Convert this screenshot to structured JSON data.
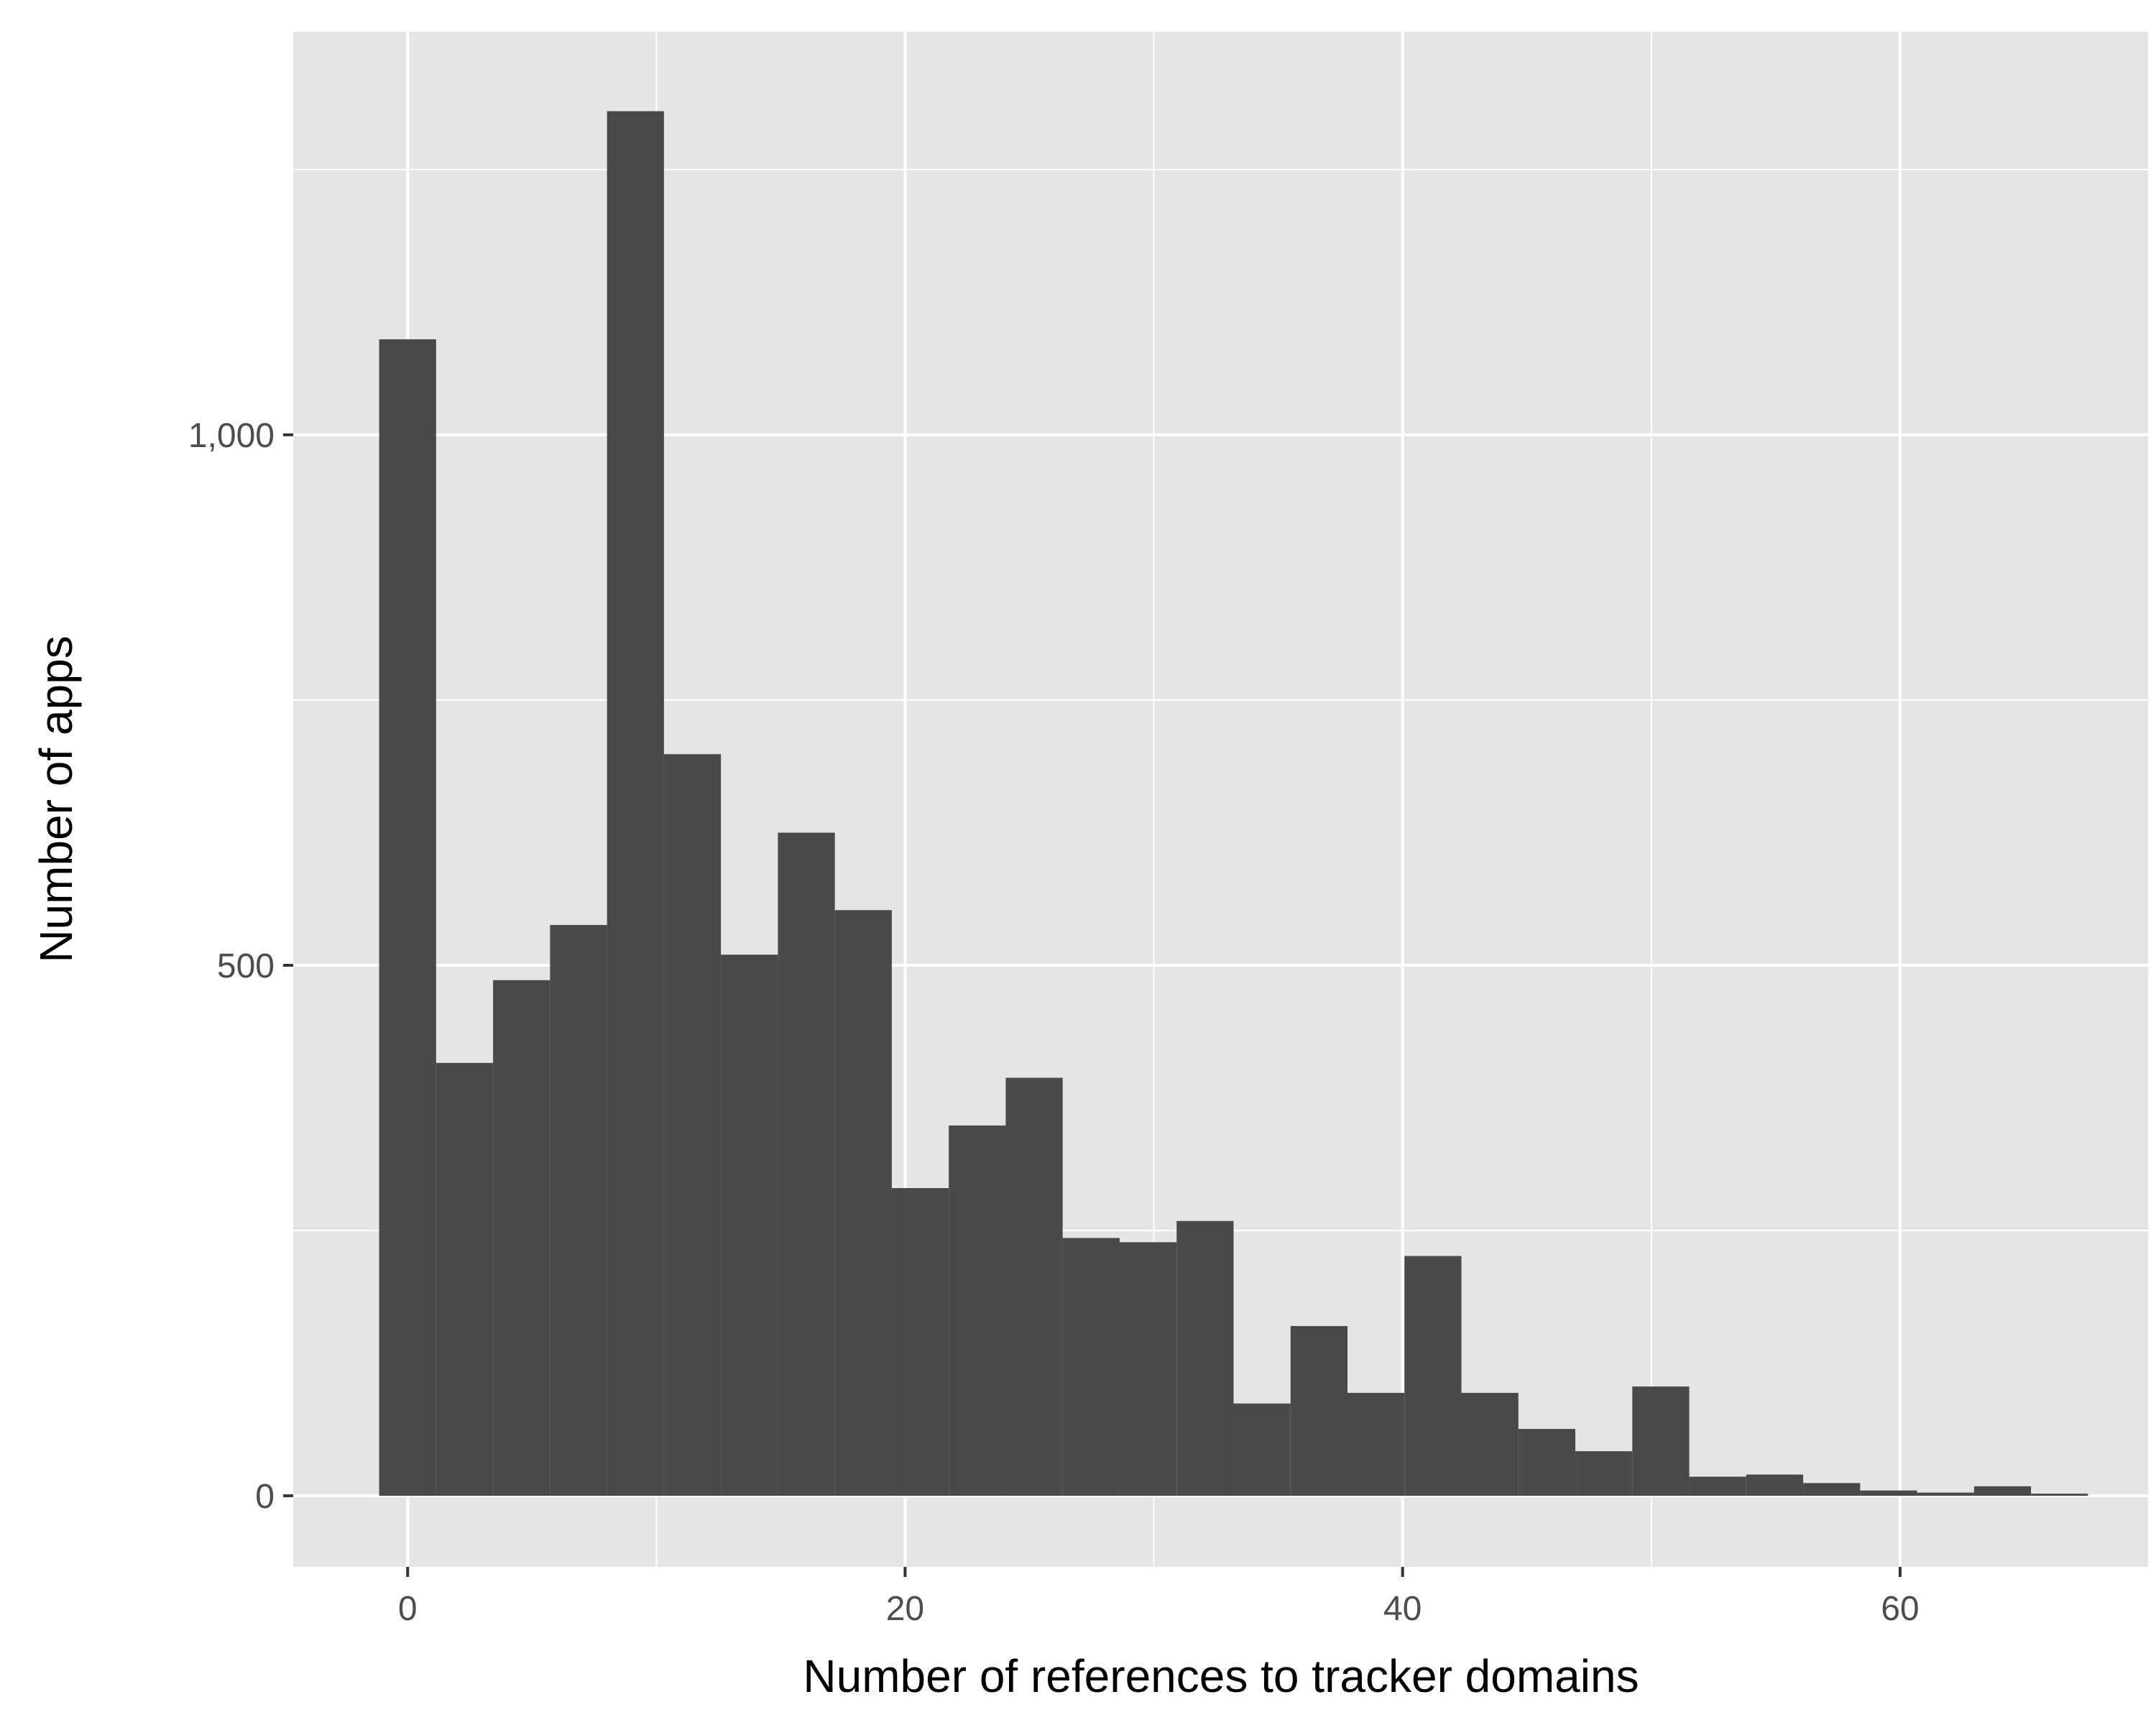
{
  "chart_data": {
    "type": "bar",
    "subtype": "histogram",
    "title": "",
    "xlabel": "Number of references to tracker domains",
    "ylabel": "Number of apps",
    "bin_width": 2.29,
    "bins": [
      {
        "center": 0.0,
        "count": 1090
      },
      {
        "center": 2.29,
        "count": 408
      },
      {
        "center": 4.58,
        "count": 486
      },
      {
        "center": 6.87,
        "count": 538
      },
      {
        "center": 9.16,
        "count": 1305
      },
      {
        "center": 11.45,
        "count": 699
      },
      {
        "center": 13.74,
        "count": 510
      },
      {
        "center": 16.03,
        "count": 625
      },
      {
        "center": 18.32,
        "count": 552
      },
      {
        "center": 20.61,
        "count": 290
      },
      {
        "center": 22.9,
        "count": 349
      },
      {
        "center": 25.19,
        "count": 394
      },
      {
        "center": 27.48,
        "count": 243
      },
      {
        "center": 29.77,
        "count": 239
      },
      {
        "center": 32.06,
        "count": 259
      },
      {
        "center": 34.35,
        "count": 87
      },
      {
        "center": 36.64,
        "count": 160
      },
      {
        "center": 38.93,
        "count": 97
      },
      {
        "center": 41.22,
        "count": 226
      },
      {
        "center": 43.51,
        "count": 97
      },
      {
        "center": 45.8,
        "count": 63
      },
      {
        "center": 48.09,
        "count": 42
      },
      {
        "center": 50.38,
        "count": 103
      },
      {
        "center": 52.67,
        "count": 18
      },
      {
        "center": 54.96,
        "count": 20
      },
      {
        "center": 57.25,
        "count": 12
      },
      {
        "center": 59.54,
        "count": 5
      },
      {
        "center": 61.83,
        "count": 3
      },
      {
        "center": 64.12,
        "count": 9
      },
      {
        "center": 66.41,
        "count": 2
      }
    ],
    "xlim": [
      -4.6,
      70.0
    ],
    "ylim": [
      -67,
      1380
    ],
    "x_ticks": [
      {
        "value": 0,
        "label": "0"
      },
      {
        "value": 20,
        "label": "20"
      },
      {
        "value": 40,
        "label": "40"
      },
      {
        "value": 60,
        "label": "60"
      }
    ],
    "x_minor_ticks": [
      10,
      30,
      50,
      70
    ],
    "y_ticks": [
      {
        "value": 0,
        "label": "0"
      },
      {
        "value": 500,
        "label": "500"
      },
      {
        "value": 1000,
        "label": "1,000"
      }
    ],
    "y_minor_ticks": [
      250,
      750,
      1250
    ],
    "grid": true,
    "legend": "none",
    "colors": {
      "bar_fill": "#494949",
      "panel_background": "#e5e5e5",
      "grid_line": "#ffffff",
      "tick_label": "#4d4d4d",
      "axis_title": "#000000",
      "tick_mark": "#333333"
    }
  }
}
